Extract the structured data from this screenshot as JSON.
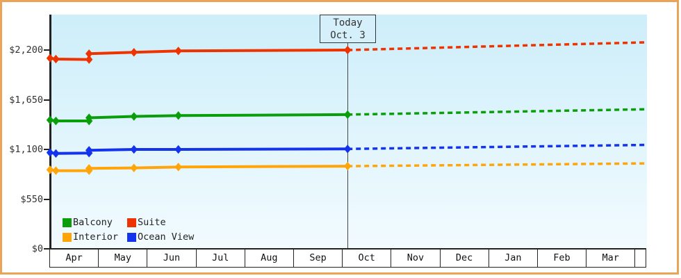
{
  "window": {
    "frame_color": "#e9a458",
    "background": "#ffffff"
  },
  "today": {
    "line1": "Today",
    "line2": "Oct. 3"
  },
  "legend": [
    {
      "label": "Balcony",
      "color": "#0a9e0a"
    },
    {
      "label": "Suite",
      "color": "#ee3300"
    },
    {
      "label": "Interior",
      "color": "#ffa50a"
    },
    {
      "label": "Ocean View",
      "color": "#1433ee"
    }
  ],
  "chart_data": {
    "type": "line",
    "title": "",
    "months": [
      "Apr",
      "May",
      "Jun",
      "Jul",
      "Aug",
      "Sep",
      "Oct",
      "Nov",
      "Dec",
      "Jan",
      "Feb",
      "Mar"
    ],
    "y_axis": {
      "ticks": [
        {
          "label": "$0",
          "value": 0
        },
        {
          "label": "$550",
          "value": 550
        },
        {
          "label": "$1,100",
          "value": 1100
        },
        {
          "label": "$1,650",
          "value": 1650
        },
        {
          "label": "$2,200",
          "value": 2200
        }
      ],
      "range": [
        0,
        2590
      ]
    },
    "x_unit": "months since Apr 1 (0 = Apr 1, 6.1 = Oct 3 today marker, 12.22 = right edge of plot)",
    "today_x": 6.1,
    "grid": false,
    "legend_position": "bottom-left inside plot",
    "solid_segment_meaning": "recorded prices Apr 1 through today Oct 3",
    "dashed_segment_meaning": "forecast prices after today through end of chart",
    "series": [
      {
        "name": "Suite",
        "color": "#ee3300",
        "points": [
          [
            0,
            2110
          ],
          [
            0.12,
            2100
          ],
          [
            0.8,
            2095
          ],
          [
            0.8,
            2160
          ],
          [
            1.72,
            2175
          ],
          [
            2.63,
            2190
          ],
          [
            6.1,
            2200
          ]
        ],
        "forecast": [
          [
            6.1,
            2200
          ],
          [
            12.22,
            2285
          ]
        ]
      },
      {
        "name": "Balcony",
        "color": "#0a9e0a",
        "points": [
          [
            0,
            1425
          ],
          [
            0.12,
            1415
          ],
          [
            0.8,
            1415
          ],
          [
            0.8,
            1450
          ],
          [
            1.72,
            1465
          ],
          [
            2.63,
            1475
          ],
          [
            6.1,
            1485
          ]
        ],
        "forecast": [
          [
            6.1,
            1485
          ],
          [
            12.22,
            1545
          ]
        ]
      },
      {
        "name": "Ocean View",
        "color": "#1433ee",
        "points": [
          [
            0,
            1065
          ],
          [
            0.12,
            1055
          ],
          [
            0.8,
            1060
          ],
          [
            0.8,
            1090
          ],
          [
            1.72,
            1100
          ],
          [
            2.63,
            1100
          ],
          [
            6.1,
            1105
          ]
        ],
        "forecast": [
          [
            6.1,
            1105
          ],
          [
            12.22,
            1150
          ]
        ]
      },
      {
        "name": "Interior",
        "color": "#ffa50a",
        "points": [
          [
            0,
            875
          ],
          [
            0.12,
            865
          ],
          [
            0.8,
            865
          ],
          [
            0.8,
            890
          ],
          [
            1.72,
            895
          ],
          [
            2.63,
            905
          ],
          [
            6.1,
            915
          ]
        ],
        "forecast": [
          [
            6.1,
            915
          ],
          [
            12.22,
            945
          ]
        ]
      }
    ]
  }
}
